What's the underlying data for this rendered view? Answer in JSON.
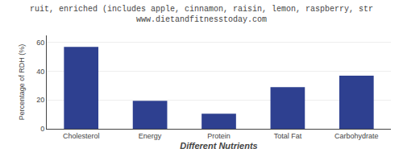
{
  "chart_data": {
    "type": "bar",
    "title": "ruit, enriched (includes apple, cinnamon, raisin, lemon, raspberry, str",
    "subtitle": "www.dietandfitnesstoday.com",
    "categories": [
      "Cholesterol",
      "Energy",
      "Protein",
      "Total Fat",
      "Carbohydrate"
    ],
    "values": [
      57,
      19.5,
      10.5,
      29,
      37
    ],
    "color": "#2e4090",
    "xlabel": "Different Nutrients",
    "ylabel": "Percentage of RDH (%)",
    "ylim": [
      0,
      65
    ],
    "yticks": [
      0,
      20,
      40,
      60
    ],
    "grid": true
  }
}
